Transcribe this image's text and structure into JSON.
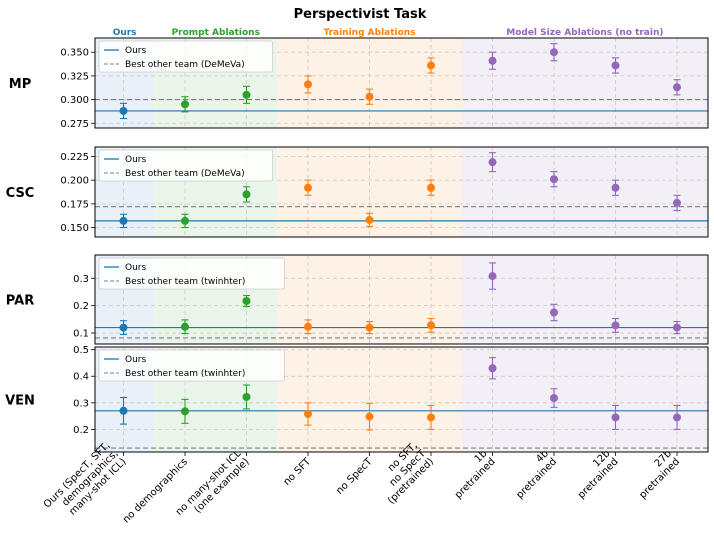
{
  "chart_data": {
    "type": "scatter",
    "title": "Perspectivist Task",
    "categories": [
      "Ours (SpecT, SFT, demographics, many-shot ICL)",
      "no demographics",
      "no many-shot ICL (one example)",
      "no SFT",
      "no SpecT",
      "no SFT, no SpecT (pretrained)",
      "1b pretrained",
      "4b pretrained",
      "12b pretrained",
      "27b pretrained"
    ],
    "category_lines": [
      [
        "Ours (SpecT, SFT,",
        "demographics,",
        "many-shot ICL)"
      ],
      [
        "no demographics"
      ],
      [
        "no many-shot ICL",
        "(one example)"
      ],
      [
        "no SFT"
      ],
      [
        "no SpecT"
      ],
      [
        "no SFT,",
        "no SpecT",
        "(pretrained)"
      ],
      [
        "1b",
        "pretrained"
      ],
      [
        "4b",
        "pretrained"
      ],
      [
        "12b",
        "pretrained"
      ],
      [
        "27b",
        "pretrained"
      ]
    ],
    "groups": [
      {
        "name": "Ours",
        "start": 0,
        "end": 0,
        "color": "#1f77b4",
        "bg": "#e8f0f8"
      },
      {
        "name": "Prompt Ablations",
        "start": 1,
        "end": 2,
        "color": "#2ca02c",
        "bg": "#eaf5ea"
      },
      {
        "name": "Training Ablations",
        "start": 3,
        "end": 5,
        "color": "#ff7f0e",
        "bg": "#fef1e5"
      },
      {
        "name": "Model Size Ablations (no train)",
        "start": 6,
        "end": 9,
        "color": "#9467bd",
        "bg": "#f3eff7"
      }
    ],
    "legend": {
      "ours_label": "Ours",
      "placement": "top-left"
    },
    "panels": [
      {
        "label": "MP",
        "ylim": [
          0.27,
          0.365
        ],
        "yticks": [
          0.275,
          0.3,
          0.325,
          0.35
        ],
        "ytick_labels": [
          "0.275",
          "0.300",
          "0.325",
          "0.350"
        ],
        "ours_line": 0.288,
        "best_line": 0.3,
        "best_label": "Best other team (DeMeVa)",
        "values": [
          0.288,
          0.295,
          0.305,
          0.316,
          0.303,
          0.336,
          0.341,
          0.35,
          0.336,
          0.313
        ],
        "errors": [
          0.008,
          0.008,
          0.009,
          0.009,
          0.008,
          0.008,
          0.009,
          0.009,
          0.008,
          0.008
        ]
      },
      {
        "label": "CSC",
        "ylim": [
          0.14,
          0.235
        ],
        "yticks": [
          0.15,
          0.175,
          0.2,
          0.225
        ],
        "ytick_labels": [
          "0.150",
          "0.175",
          "0.200",
          "0.225"
        ],
        "ours_line": 0.157,
        "best_line": 0.172,
        "best_label": "Best other team (DeMeVa)",
        "values": [
          0.157,
          0.157,
          0.185,
          0.192,
          0.158,
          0.192,
          0.219,
          0.201,
          0.192,
          0.176
        ],
        "errors": [
          0.007,
          0.007,
          0.008,
          0.008,
          0.007,
          0.008,
          0.01,
          0.008,
          0.008,
          0.008
        ]
      },
      {
        "label": "PAR",
        "ylim": [
          0.06,
          0.385
        ],
        "yticks": [
          0.1,
          0.2,
          0.3
        ],
        "ytick_labels": [
          "0.1",
          "0.2",
          "0.3"
        ],
        "ours_line": 0.12,
        "best_line": 0.082,
        "best_label": "Best other team (twinhter)",
        "values": [
          0.12,
          0.123,
          0.217,
          0.123,
          0.12,
          0.128,
          0.308,
          0.175,
          0.128,
          0.12
        ],
        "errors": [
          0.025,
          0.025,
          0.02,
          0.025,
          0.022,
          0.025,
          0.048,
          0.03,
          0.025,
          0.022
        ]
      },
      {
        "label": "VEN",
        "ylim": [
          0.115,
          0.51
        ],
        "yticks": [
          0.2,
          0.3,
          0.4,
          0.5
        ],
        "ytick_labels": [
          "0.2",
          "0.3",
          "0.4",
          "0.5"
        ],
        "ours_line": 0.27,
        "best_line": 0.13,
        "best_label": "Best other team (twinhter)",
        "values": [
          0.27,
          0.268,
          0.322,
          0.258,
          0.248,
          0.245,
          0.43,
          0.318,
          0.245,
          0.245
        ],
        "errors": [
          0.05,
          0.045,
          0.045,
          0.042,
          0.05,
          0.045,
          0.04,
          0.035,
          0.045,
          0.045
        ]
      }
    ]
  }
}
